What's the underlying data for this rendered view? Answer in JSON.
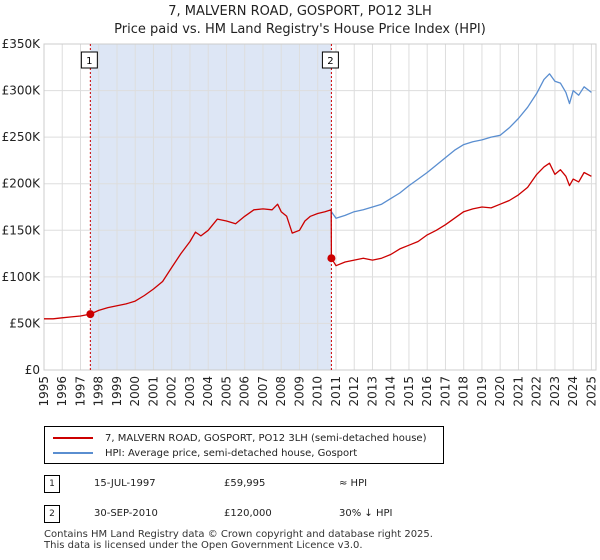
{
  "header": {
    "title": "7, MALVERN ROAD, GOSPORT, PO12 3LH",
    "subtitle": "Price paid vs. HM Land Registry's House Price Index (HPI)"
  },
  "colors": {
    "property": "#cc0000",
    "hpi": "#5a8ed0",
    "shade": "#dde6f5",
    "marker_line": "#cc0000"
  },
  "chart_data": {
    "type": "line",
    "title": "7, MALVERN ROAD, GOSPORT, PO12 3LH",
    "subtitle": "Price paid vs. HM Land Registry's House Price Index (HPI)",
    "xlabel": "",
    "ylabel": "",
    "xlim": [
      1995.0,
      2025.25
    ],
    "ylim": [
      0,
      350000
    ],
    "yticks": [
      0,
      50000,
      100000,
      150000,
      200000,
      250000,
      300000,
      350000
    ],
    "ytick_labels": [
      "£0",
      "£50K",
      "£100K",
      "£150K",
      "£200K",
      "£250K",
      "£300K",
      "£350K"
    ],
    "xticks": [
      1995,
      1996,
      1997,
      1998,
      1999,
      2000,
      2001,
      2002,
      2003,
      2004,
      2005,
      2006,
      2007,
      2008,
      2009,
      2010,
      2011,
      2012,
      2013,
      2014,
      2015,
      2016,
      2017,
      2018,
      2019,
      2020,
      2021,
      2022,
      2023,
      2024,
      2025
    ],
    "grid": true,
    "shaded_region": [
      1997.54,
      2010.75
    ],
    "series": [
      {
        "name": "7, MALVERN ROAD, GOSPORT, PO12 3LH (semi-detached house)",
        "x": [
          1995.0,
          1995.5,
          1996.0,
          1996.5,
          1997.0,
          1997.54,
          1998.0,
          1998.5,
          1999.0,
          1999.5,
          2000.0,
          2000.5,
          2001.0,
          2001.5,
          2002.0,
          2002.5,
          2003.0,
          2003.3,
          2003.6,
          2004.0,
          2004.5,
          2005.0,
          2005.5,
          2006.0,
          2006.5,
          2007.0,
          2007.5,
          2007.8,
          2008.0,
          2008.3,
          2008.6,
          2009.0,
          2009.3,
          2009.6,
          2010.0,
          2010.4,
          2010.74,
          2010.75,
          2011.0,
          2011.5,
          2012.0,
          2012.5,
          2013.0,
          2013.5,
          2014.0,
          2014.5,
          2015.0,
          2015.5,
          2016.0,
          2016.5,
          2017.0,
          2017.5,
          2018.0,
          2018.5,
          2019.0,
          2019.5,
          2020.0,
          2020.5,
          2021.0,
          2021.5,
          2022.0,
          2022.4,
          2022.7,
          2023.0,
          2023.3,
          2023.6,
          2023.8,
          2024.0,
          2024.3,
          2024.6,
          2025.0
        ],
        "values": [
          55000,
          55000,
          56000,
          57000,
          58000,
          59995,
          64000,
          67000,
          69000,
          71000,
          74000,
          80000,
          87000,
          95000,
          110000,
          125000,
          138000,
          148000,
          144000,
          150000,
          162000,
          160000,
          157000,
          165000,
          172000,
          173000,
          172000,
          178000,
          170000,
          165000,
          147000,
          150000,
          160000,
          165000,
          168000,
          170000,
          172000,
          120000,
          112000,
          116000,
          118000,
          120000,
          118000,
          120000,
          124000,
          130000,
          134000,
          138000,
          145000,
          150000,
          156000,
          163000,
          170000,
          173000,
          175000,
          174000,
          178000,
          182000,
          188000,
          196000,
          210000,
          218000,
          222000,
          210000,
          215000,
          208000,
          198000,
          205000,
          202000,
          212000,
          208000
        ]
      },
      {
        "name": "HPI: Average price, semi-detached house, Gosport",
        "x": [
          2010.75,
          2011.0,
          2011.5,
          2012.0,
          2012.5,
          2013.0,
          2013.5,
          2014.0,
          2014.5,
          2015.0,
          2015.5,
          2016.0,
          2016.5,
          2017.0,
          2017.5,
          2018.0,
          2018.5,
          2019.0,
          2019.5,
          2020.0,
          2020.5,
          2021.0,
          2021.5,
          2022.0,
          2022.4,
          2022.7,
          2023.0,
          2023.3,
          2023.6,
          2023.8,
          2024.0,
          2024.3,
          2024.6,
          2025.0
        ],
        "values": [
          170000,
          163000,
          166000,
          170000,
          172000,
          175000,
          178000,
          184000,
          190000,
          198000,
          205000,
          212000,
          220000,
          228000,
          236000,
          242000,
          245000,
          247000,
          250000,
          252000,
          260000,
          270000,
          282000,
          297000,
          312000,
          318000,
          310000,
          308000,
          298000,
          286000,
          300000,
          295000,
          304000,
          298000
        ]
      }
    ],
    "transactions": [
      {
        "id": "1",
        "x": 1997.54,
        "value": 59995,
        "date": "15-JUL-1997",
        "price": "£59,995",
        "relation": "≈ HPI"
      },
      {
        "id": "2",
        "x": 2010.75,
        "value": 120000,
        "date": "30-SEP-2010",
        "price": "£120,000",
        "relation": "30% ↓ HPI"
      }
    ]
  },
  "legend": {
    "property_label": "7, MALVERN ROAD, GOSPORT, PO12 3LH (semi-detached house)",
    "hpi_label": "HPI: Average price, semi-detached house, Gosport"
  },
  "footer": {
    "line1": "Contains HM Land Registry data © Crown copyright and database right 2025.",
    "line2": "This data is licensed under the Open Government Licence v3.0."
  }
}
